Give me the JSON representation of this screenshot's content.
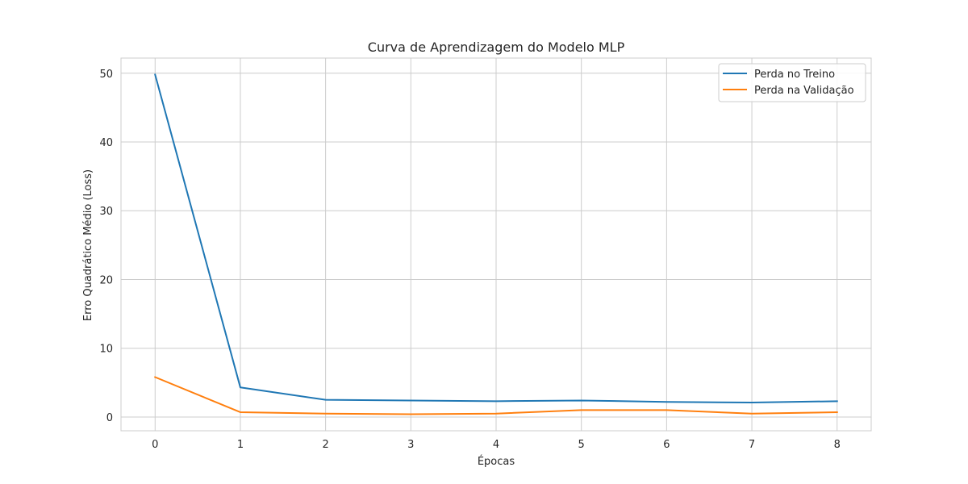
{
  "chart_data": {
    "type": "line",
    "title": "Curva de Aprendizagem do Modelo MLP",
    "xlabel": "Épocas",
    "ylabel": "Erro Quadrático Médio (Loss)",
    "x": [
      0,
      1,
      2,
      3,
      4,
      5,
      6,
      7,
      8
    ],
    "x_ticks": [
      "0",
      "1",
      "2",
      "3",
      "4",
      "5",
      "6",
      "7",
      "8"
    ],
    "y_ticks": [
      "0",
      "10",
      "20",
      "30",
      "40",
      "50"
    ],
    "xlim": [
      -0.4,
      8.4
    ],
    "ylim": [
      -2,
      52.2
    ],
    "grid": true,
    "legend_position": "top-right",
    "series": [
      {
        "name": "Perda no Treino",
        "color": "#1f77b4",
        "values": [
          49.8,
          4.3,
          2.5,
          2.4,
          2.3,
          2.4,
          2.2,
          2.1,
          2.3
        ]
      },
      {
        "name": "Perda na Validação",
        "color": "#ff7f0e",
        "values": [
          5.8,
          0.7,
          0.5,
          0.4,
          0.5,
          1.0,
          1.0,
          0.5,
          0.7
        ]
      }
    ]
  }
}
